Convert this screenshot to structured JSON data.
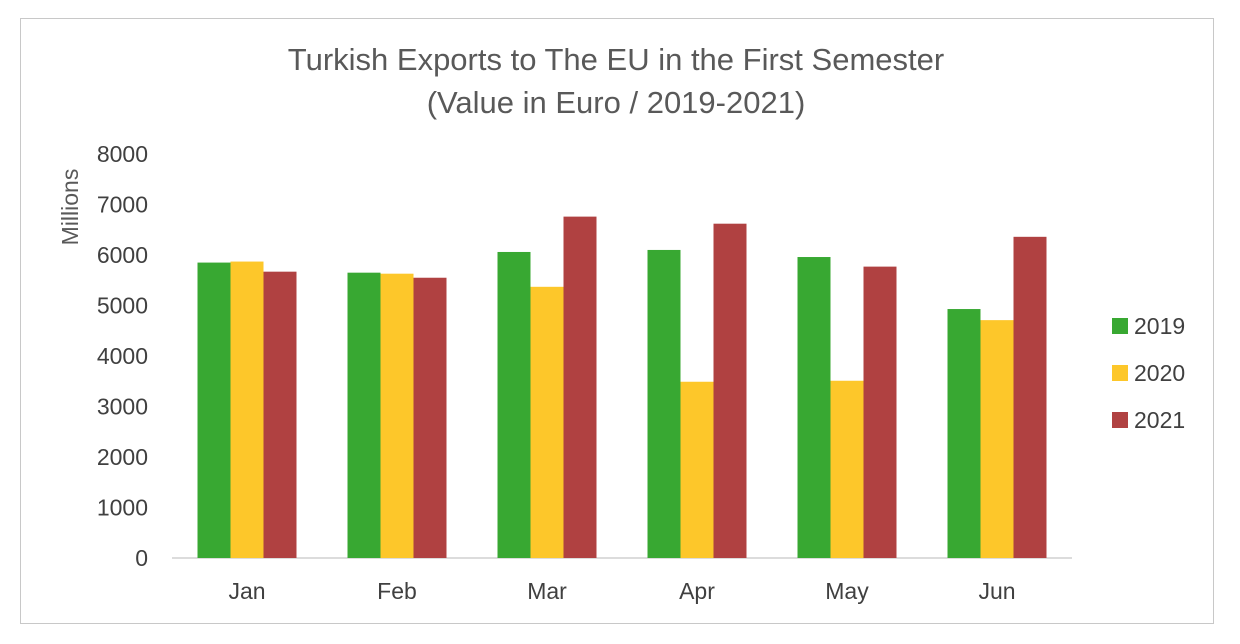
{
  "chart_data": {
    "type": "bar",
    "title": "Turkish Exports to The EU in the First Semester",
    "subtitle": "(Value in Euro / 2019-2021)",
    "ylabel": "Millions",
    "xlabel": "",
    "ylim": [
      0,
      8000
    ],
    "yticks": [
      "0",
      "1000",
      "2000",
      "3000",
      "4000",
      "5000",
      "6000",
      "7000",
      "8000"
    ],
    "categories": [
      "Jan",
      "Feb",
      "Mar",
      "Apr",
      "May",
      "Jun"
    ],
    "series": [
      {
        "name": "2019",
        "color": "#38a832",
        "values": [
          5850,
          5650,
          6060,
          6100,
          5960,
          4930
        ]
      },
      {
        "name": "2020",
        "color": "#fdc72a",
        "values": [
          5870,
          5630,
          5370,
          3490,
          3510,
          4710
        ]
      },
      {
        "name": "2021",
        "color": "#b04141",
        "values": [
          5670,
          5550,
          6760,
          6620,
          5770,
          6360
        ]
      }
    ],
    "grid": false,
    "legend": "right"
  }
}
